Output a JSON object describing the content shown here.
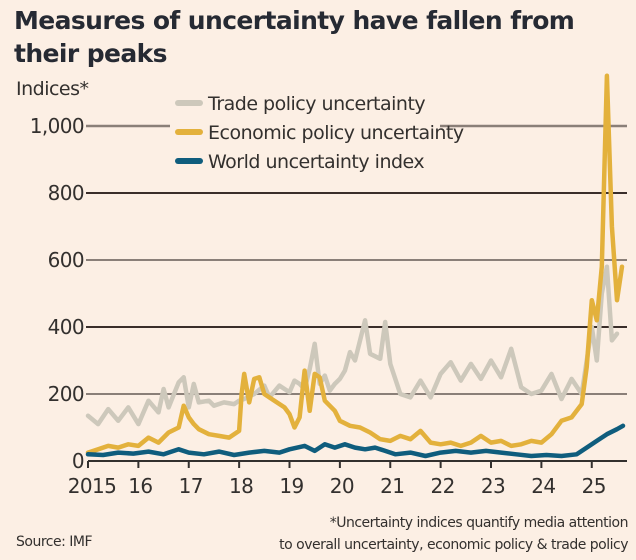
{
  "chart_data": {
    "type": "line",
    "title": "Measures of uncertainty have fallen from their peaks",
    "ylabel": "Indices*",
    "xlabel": "",
    "ylim": [
      0,
      1000
    ],
    "xlim": [
      2015,
      2025.62
    ],
    "grid": true,
    "legend_position": "top-center",
    "yticks": [
      0,
      200,
      400,
      600,
      800,
      1000
    ],
    "ytick_labels": [
      "0",
      "200",
      "400",
      "600",
      "800",
      "1,000"
    ],
    "xticks": [
      2015,
      2016,
      2017,
      2018,
      2019,
      2020,
      2021,
      2022,
      2023,
      2024,
      2025
    ],
    "xtick_labels": [
      "2015",
      "16",
      "17",
      "18",
      "19",
      "20",
      "21",
      "22",
      "23",
      "24",
      "25"
    ],
    "series": [
      {
        "name": "Trade policy uncertainty",
        "color": "#cdc8bb",
        "x": [
          2015.0,
          2015.2,
          2015.4,
          2015.6,
          2015.8,
          2016.0,
          2016.2,
          2016.4,
          2016.5,
          2016.6,
          2016.8,
          2016.9,
          2017.0,
          2017.1,
          2017.2,
          2017.4,
          2017.5,
          2017.7,
          2017.9,
          2018.0,
          2018.1,
          2018.3,
          2018.5,
          2018.6,
          2018.8,
          2019.0,
          2019.1,
          2019.2,
          2019.3,
          2019.4,
          2019.5,
          2019.6,
          2019.7,
          2019.8,
          2019.9,
          2020.0,
          2020.1,
          2020.2,
          2020.3,
          2020.5,
          2020.6,
          2020.8,
          2020.9,
          2021.0,
          2021.2,
          2021.4,
          2021.6,
          2021.8,
          2022.0,
          2022.2,
          2022.4,
          2022.6,
          2022.8,
          2023.0,
          2023.2,
          2023.4,
          2023.6,
          2023.8,
          2024.0,
          2024.2,
          2024.4,
          2024.6,
          2024.8,
          2025.0,
          2025.1,
          2025.2,
          2025.3,
          2025.4,
          2025.5
        ],
        "values": [
          135,
          110,
          155,
          120,
          160,
          110,
          180,
          145,
          215,
          160,
          235,
          250,
          160,
          230,
          175,
          180,
          165,
          175,
          170,
          180,
          185,
          200,
          225,
          190,
          225,
          205,
          240,
          230,
          215,
          275,
          350,
          230,
          255,
          210,
          230,
          245,
          270,
          325,
          300,
          420,
          320,
          305,
          415,
          290,
          200,
          190,
          240,
          190,
          260,
          295,
          240,
          290,
          245,
          300,
          250,
          335,
          220,
          200,
          210,
          260,
          185,
          245,
          200,
          400,
          300,
          500,
          580,
          360,
          380
        ]
      },
      {
        "name": "Economic policy uncertainty",
        "color": "#e3b13c",
        "x": [
          2015.0,
          2015.2,
          2015.4,
          2015.6,
          2015.8,
          2016.0,
          2016.2,
          2016.4,
          2016.6,
          2016.8,
          2016.9,
          2017.0,
          2017.1,
          2017.2,
          2017.4,
          2017.6,
          2017.8,
          2018.0,
          2018.05,
          2018.1,
          2018.2,
          2018.3,
          2018.4,
          2018.5,
          2018.7,
          2018.9,
          2019.0,
          2019.1,
          2019.2,
          2019.3,
          2019.4,
          2019.5,
          2019.6,
          2019.7,
          2019.9,
          2020.0,
          2020.2,
          2020.4,
          2020.6,
          2020.8,
          2021.0,
          2021.2,
          2021.4,
          2021.6,
          2021.8,
          2022.0,
          2022.2,
          2022.4,
          2022.6,
          2022.8,
          2023.0,
          2023.2,
          2023.4,
          2023.6,
          2023.8,
          2024.0,
          2024.2,
          2024.4,
          2024.6,
          2024.8,
          2024.9,
          2025.0,
          2025.1,
          2025.2,
          2025.3,
          2025.4,
          2025.5,
          2025.6
        ],
        "values": [
          25,
          35,
          45,
          40,
          50,
          45,
          70,
          55,
          85,
          100,
          165,
          130,
          110,
          95,
          80,
          75,
          70,
          90,
          200,
          260,
          175,
          245,
          250,
          200,
          180,
          160,
          140,
          100,
          130,
          270,
          150,
          260,
          250,
          180,
          150,
          120,
          105,
          100,
          85,
          65,
          60,
          75,
          65,
          90,
          55,
          50,
          55,
          45,
          55,
          75,
          55,
          60,
          45,
          50,
          60,
          55,
          80,
          120,
          130,
          170,
          280,
          480,
          420,
          580,
          1150,
          700,
          480,
          580
        ]
      },
      {
        "name": "World uncertainty index",
        "color": "#0f5d7d",
        "x": [
          2015.0,
          2015.3,
          2015.6,
          2015.9,
          2016.2,
          2016.5,
          2016.8,
          2017.0,
          2017.3,
          2017.6,
          2017.9,
          2018.2,
          2018.5,
          2018.8,
          2019.0,
          2019.3,
          2019.5,
          2019.7,
          2019.9,
          2020.1,
          2020.3,
          2020.5,
          2020.7,
          2020.9,
          2021.1,
          2021.4,
          2021.7,
          2022.0,
          2022.3,
          2022.6,
          2022.9,
          2023.2,
          2023.5,
          2023.8,
          2024.1,
          2024.4,
          2024.7,
          2024.9,
          2025.1,
          2025.3,
          2025.5,
          2025.62
        ],
        "values": [
          20,
          18,
          25,
          22,
          28,
          20,
          35,
          25,
          20,
          28,
          18,
          25,
          30,
          25,
          35,
          45,
          30,
          50,
          40,
          50,
          40,
          35,
          40,
          30,
          20,
          25,
          15,
          25,
          30,
          25,
          30,
          25,
          20,
          15,
          18,
          15,
          20,
          40,
          60,
          80,
          95,
          105
        ]
      }
    ]
  },
  "header": {
    "title": "Measures of uncertainty have fallen from their peaks",
    "unit_label": "Indices*"
  },
  "footer": {
    "source": "Source: IMF",
    "footnote_line1": "*Uncertainty indices quantify media attention",
    "footnote_line2": "to overall uncertainty, economic policy & trade policy"
  }
}
